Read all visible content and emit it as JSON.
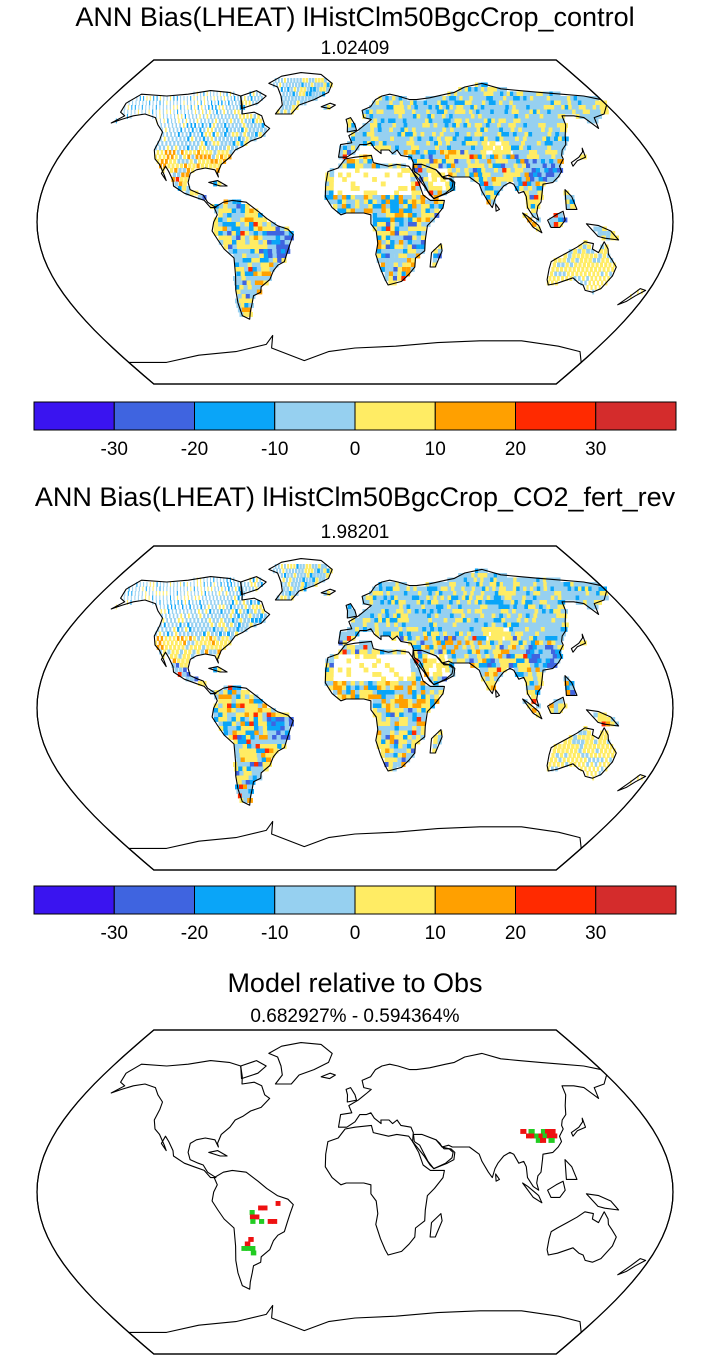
{
  "panels": [
    {
      "title": "ANN Bias(LHEAT) lHistClm50BgcCrop_control",
      "subtitle": "1.02409"
    },
    {
      "title": "ANN Bias(LHEAT) lHistClm50BgcCrop_CO2_fert_rev",
      "subtitle": "1.98201"
    },
    {
      "title": "Model relative to Obs",
      "subtitle": "0.682927% - 0.594364%"
    }
  ],
  "colorbar": {
    "colors": [
      "#3a14f0",
      "#3f64e0",
      "#0aa5f8",
      "#96d0f0",
      "#ffec64",
      "#ffa000",
      "#ff2a00",
      "#d42c2c"
    ],
    "labels": [
      "-30",
      "-20",
      "-10",
      "0",
      "10",
      "20",
      "30"
    ]
  },
  "palette": {
    "coast": "#000000",
    "improved": "#22cc22",
    "worse": "#ee1111"
  }
}
